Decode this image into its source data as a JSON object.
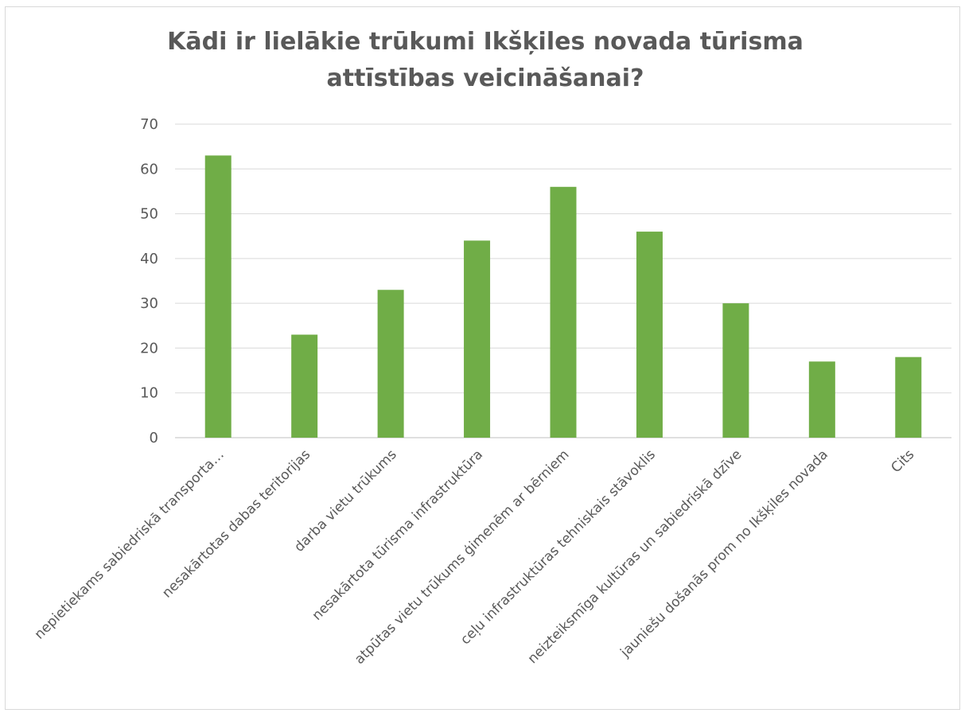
{
  "chart_data": {
    "type": "bar",
    "title": "Kādi ir lielākie trūkumi Ikšķiles novada tūrisma attīstības veicināšanai?",
    "categories": [
      "nepietiekams sabiedriskā transporta…",
      "nesakārtotas dabas teritorijas",
      "darba vietu trūkums",
      "nesakārtota tūrisma infrastruktūra",
      "atpūtas vietu trūkums ģimenēm ar bērniem",
      "ceļu infrastruktūras tehniskais stāvoklis",
      "neizteiksmīga kultūras un sabiedriskā dzīve",
      "jauniešu došanās prom no Ikšķiles novada",
      "Cits"
    ],
    "values": [
      63,
      23,
      33,
      44,
      56,
      46,
      30,
      17,
      18
    ],
    "yticks": [
      "0",
      "10",
      "20",
      "30",
      "40",
      "50",
      "60",
      "70"
    ],
    "ylim": [
      0,
      70
    ],
    "grid": true,
    "legend": "none",
    "bar_color": "#70ad47",
    "grid_color": "#d9d9d9",
    "text_color": "#595959"
  }
}
